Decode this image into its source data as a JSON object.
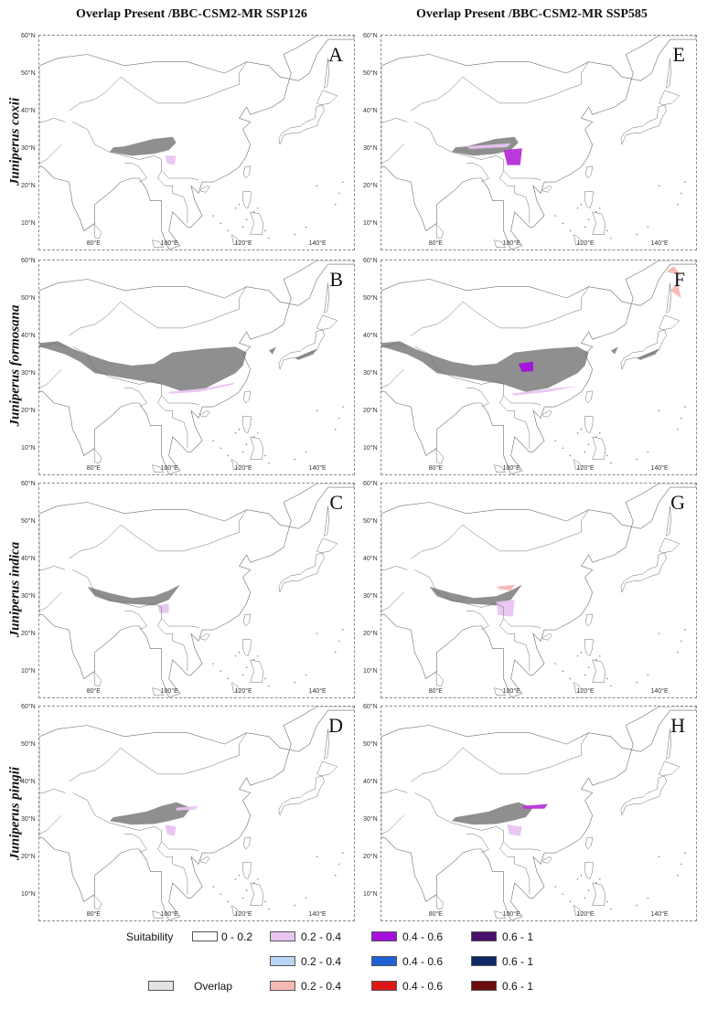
{
  "columns": [
    {
      "title": "Overlap Present /BBC-CSM2-MR SSP126"
    },
    {
      "title": "Overlap Present /BBC-CSM2-MR SSP585"
    }
  ],
  "rows": [
    {
      "species": "Juniperus coxii"
    },
    {
      "species": "Juniperus formosana"
    },
    {
      "species": "Juniperus indica"
    },
    {
      "species": "Juniperus pingii"
    }
  ],
  "panels": [
    {
      "letter": "A"
    },
    {
      "letter": "E"
    },
    {
      "letter": "B"
    },
    {
      "letter": "F"
    },
    {
      "letter": "C"
    },
    {
      "letter": "G"
    },
    {
      "letter": "D"
    },
    {
      "letter": "H"
    }
  ],
  "axes": {
    "lat_ticks": [
      "60°N",
      "50°N",
      "40°N",
      "30°N",
      "20°N",
      "10°N"
    ],
    "lon_ticks": [
      "80°E",
      "100°E",
      "120°E",
      "140°E"
    ]
  },
  "legend": {
    "title": "Suitability",
    "base": {
      "label": "0 - 0.2",
      "color": "#ffffff"
    },
    "classes": [
      {
        "label": "0.2 - 0.4",
        "color": "#e8c4f2"
      },
      {
        "label": "0.4 - 0.6",
        "color": "#a40fde"
      },
      {
        "label": "0.6 - 1",
        "color": "#4a0f6b"
      },
      {
        "label": "0.2 - 0.4",
        "color": "#b9d4f5"
      },
      {
        "label": "0.4 - 0.6",
        "color": "#1f62d6"
      },
      {
        "label": "0.6 - 1",
        "color": "#0d2a66"
      },
      {
        "label": "0.2 - 0.4",
        "color": "#f6b8b4"
      },
      {
        "label": "0.4 - 0.6",
        "color": "#e01616"
      },
      {
        "label": "0.6 - 1",
        "color": "#6b0c0c"
      }
    ],
    "overlap": {
      "label": "Overlap",
      "color": "#e3e3e3"
    }
  },
  "colors": {
    "overlap_fill": "#8f8f8f",
    "coastline": "#6e6e6e"
  }
}
